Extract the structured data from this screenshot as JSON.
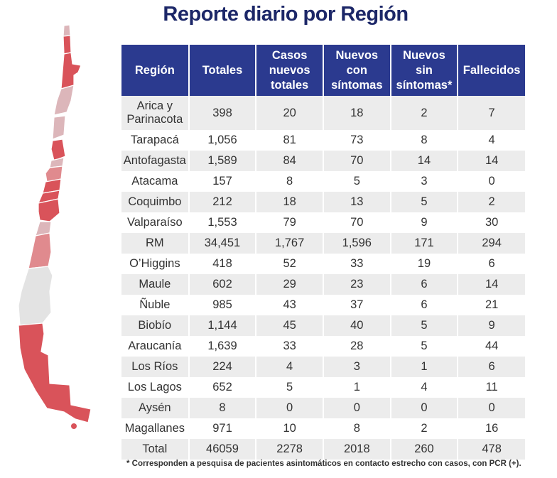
{
  "title": "Reporte diario por Región",
  "footnote": "* Corresponden a pesquisa de pacientes asintomáticos en contacto estrecho con casos, con PCR (+).",
  "colors": {
    "header": "#2b3a8f",
    "title": "#1c2768",
    "map_red": "#d9535a",
    "map_pink": "#dcb6ba",
    "map_mid": "#e08a8e",
    "map_gray": "#e3e3e3"
  },
  "chart_data": {
    "type": "table",
    "title": "Reporte diario por Región",
    "columns": [
      "Región",
      "Totales",
      "Casos nuevos totales",
      "Nuevos con síntomas",
      "Nuevos sin síntomas*",
      "Fallecidos"
    ],
    "rows": [
      [
        "Arica y Parinacota",
        "398",
        "20",
        "18",
        "2",
        "7"
      ],
      [
        "Tarapacá",
        "1,056",
        "81",
        "73",
        "8",
        "4"
      ],
      [
        "Antofagasta",
        "1,589",
        "84",
        "70",
        "14",
        "14"
      ],
      [
        "Atacama",
        "157",
        "8",
        "5",
        "3",
        "0"
      ],
      [
        "Coquimbo",
        "212",
        "18",
        "13",
        "5",
        "2"
      ],
      [
        "Valparaíso",
        "1,553",
        "79",
        "70",
        "9",
        "30"
      ],
      [
        "RM",
        "34,451",
        "1,767",
        "1,596",
        "171",
        "294"
      ],
      [
        "O’Higgins",
        "418",
        "52",
        "33",
        "19",
        "6"
      ],
      [
        "Maule",
        "602",
        "29",
        "23",
        "6",
        "14"
      ],
      [
        "Ñuble",
        "985",
        "43",
        "37",
        "6",
        "21"
      ],
      [
        "Biobío",
        "1,144",
        "45",
        "40",
        "5",
        "9"
      ],
      [
        "Araucanía",
        "1,639",
        "33",
        "28",
        "5",
        "44"
      ],
      [
        "Los Ríos",
        "224",
        "4",
        "3",
        "1",
        "6"
      ],
      [
        "Los Lagos",
        "652",
        "5",
        "1",
        "4",
        "11"
      ],
      [
        "Aysén",
        "8",
        "0",
        "0",
        "0",
        "0"
      ],
      [
        "Magallanes",
        "971",
        "10",
        "8",
        "2",
        "16"
      ]
    ],
    "total": [
      "Total",
      "46059",
      "2278",
      "2018",
      "260",
      "478"
    ]
  }
}
